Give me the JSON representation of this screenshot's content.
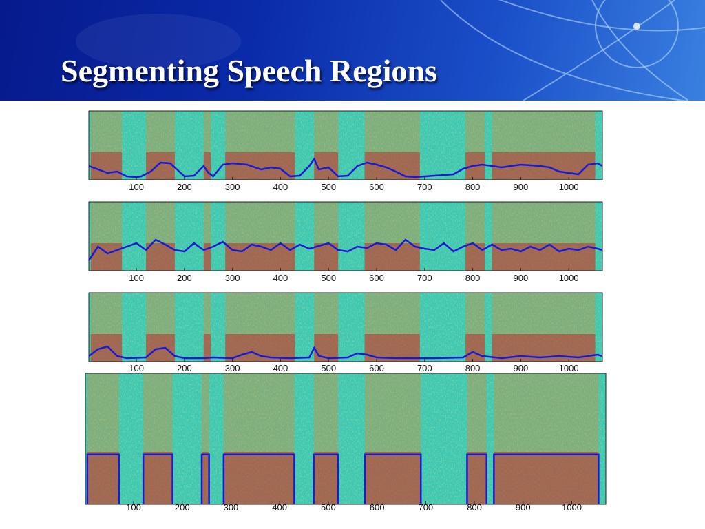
{
  "slide": {
    "title": "Segmenting Speech Regions"
  },
  "colors": {
    "spectrogram_bg": "#3ec8b4",
    "spectrogram_energy": "#f08020",
    "spectrogram_peak": "#c8141e",
    "trace": "#1a1ad6",
    "header_blue": "#0a2aa8"
  },
  "chart_data": [
    {
      "type": "line",
      "description_role": "spectrogram-with-energy-contour",
      "x_ticks": [
        "100",
        "200",
        "300",
        "400",
        "500",
        "600",
        "700",
        "800",
        "900",
        "1000"
      ],
      "xlim": [
        1,
        1070
      ],
      "speech_segments": [
        [
          5,
          70
        ],
        [
          120,
          180
        ],
        [
          240,
          255
        ],
        [
          285,
          430
        ],
        [
          470,
          520
        ],
        [
          575,
          690
        ],
        [
          785,
          825
        ],
        [
          840,
          1055
        ]
      ],
      "ylim": [
        0,
        1
      ],
      "series": [
        {
          "x": [
            1,
            40,
            60,
            80,
            100,
            110,
            130,
            150,
            170,
            180,
            200,
            220,
            240,
            250,
            260,
            280,
            300,
            330,
            360,
            380,
            400,
            420,
            440,
            460,
            470,
            480,
            500,
            520,
            540,
            560,
            580,
            600,
            620,
            640,
            660,
            680,
            700,
            720,
            760,
            780,
            800,
            820,
            840,
            860,
            880,
            900,
            940,
            960,
            980,
            1000,
            1020,
            1040,
            1060,
            1070
          ],
          "values": [
            0.2,
            0.1,
            0.12,
            0.05,
            0.04,
            0.05,
            0.12,
            0.25,
            0.24,
            0.18,
            0.05,
            0.06,
            0.2,
            0.1,
            0.05,
            0.22,
            0.24,
            0.22,
            0.15,
            0.18,
            0.16,
            0.05,
            0.06,
            0.2,
            0.3,
            0.15,
            0.18,
            0.05,
            0.06,
            0.2,
            0.25,
            0.22,
            0.18,
            0.12,
            0.05,
            0.04,
            0.05,
            0.06,
            0.08,
            0.16,
            0.2,
            0.22,
            0.2,
            0.18,
            0.2,
            0.22,
            0.2,
            0.18,
            0.12,
            0.1,
            0.08,
            0.22,
            0.24,
            0.2
          ]
        }
      ]
    },
    {
      "type": "line",
      "description_role": "spectrogram-with-noisy-feature",
      "x_ticks": [
        "100",
        "200",
        "300",
        "400",
        "500",
        "600",
        "700",
        "800",
        "900",
        "1000"
      ],
      "xlim": [
        1,
        1070
      ],
      "speech_segments": [
        [
          5,
          70
        ],
        [
          120,
          180
        ],
        [
          240,
          255
        ],
        [
          285,
          430
        ],
        [
          470,
          520
        ],
        [
          575,
          690
        ],
        [
          785,
          825
        ],
        [
          840,
          1055
        ]
      ],
      "ylim": [
        0,
        1
      ],
      "series": [
        {
          "x": [
            1,
            20,
            40,
            60,
            80,
            100,
            120,
            140,
            160,
            180,
            200,
            220,
            240,
            260,
            280,
            300,
            320,
            340,
            360,
            380,
            400,
            420,
            440,
            460,
            480,
            500,
            520,
            540,
            560,
            580,
            600,
            620,
            640,
            660,
            680,
            700,
            720,
            740,
            760,
            780,
            800,
            820,
            840,
            860,
            880,
            900,
            920,
            940,
            960,
            980,
            1000,
            1020,
            1040,
            1060,
            1070
          ],
          "values": [
            0.15,
            0.35,
            0.25,
            0.3,
            0.35,
            0.4,
            0.3,
            0.45,
            0.38,
            0.3,
            0.28,
            0.4,
            0.3,
            0.35,
            0.42,
            0.3,
            0.28,
            0.38,
            0.35,
            0.3,
            0.4,
            0.3,
            0.38,
            0.32,
            0.36,
            0.4,
            0.3,
            0.28,
            0.35,
            0.33,
            0.4,
            0.38,
            0.3,
            0.45,
            0.35,
            0.32,
            0.3,
            0.4,
            0.28,
            0.35,
            0.4,
            0.3,
            0.38,
            0.3,
            0.32,
            0.28,
            0.35,
            0.3,
            0.38,
            0.28,
            0.32,
            0.3,
            0.35,
            0.32,
            0.3
          ]
        }
      ]
    },
    {
      "type": "line",
      "description_role": "spectrogram-with-low-feature",
      "x_ticks": [
        "100",
        "200",
        "300",
        "400",
        "500",
        "600",
        "700",
        "800",
        "900",
        "1000"
      ],
      "xlim": [
        1,
        1070
      ],
      "speech_segments": [
        [
          5,
          70
        ],
        [
          120,
          180
        ],
        [
          240,
          255
        ],
        [
          285,
          430
        ],
        [
          470,
          520
        ],
        [
          575,
          690
        ],
        [
          785,
          825
        ],
        [
          840,
          1055
        ]
      ],
      "ylim": [
        0,
        1
      ],
      "series": [
        {
          "x": [
            1,
            20,
            40,
            60,
            80,
            120,
            140,
            160,
            180,
            200,
            240,
            260,
            300,
            320,
            340,
            360,
            380,
            420,
            460,
            470,
            480,
            500,
            540,
            560,
            580,
            600,
            640,
            680,
            720,
            780,
            800,
            820,
            860,
            900,
            940,
            980,
            1020,
            1060,
            1070
          ],
          "values": [
            0.08,
            0.18,
            0.22,
            0.08,
            0.05,
            0.06,
            0.18,
            0.2,
            0.08,
            0.05,
            0.05,
            0.06,
            0.05,
            0.1,
            0.14,
            0.08,
            0.06,
            0.05,
            0.06,
            0.2,
            0.08,
            0.05,
            0.06,
            0.12,
            0.1,
            0.06,
            0.05,
            0.05,
            0.05,
            0.06,
            0.14,
            0.08,
            0.05,
            0.08,
            0.06,
            0.08,
            0.06,
            0.1,
            0.08
          ]
        }
      ]
    },
    {
      "type": "line",
      "description_role": "spectrogram-with-segmentation-boxes",
      "x_ticks": [
        "100",
        "200",
        "300",
        "400",
        "500",
        "600",
        "700",
        "800",
        "900",
        "1000"
      ],
      "xlim": [
        1,
        1070
      ],
      "speech_segments": [
        [
          5,
          70
        ],
        [
          120,
          180
        ],
        [
          240,
          255
        ],
        [
          285,
          430
        ],
        [
          470,
          520
        ],
        [
          575,
          690
        ],
        [
          785,
          825
        ],
        [
          840,
          1055
        ]
      ],
      "segment_level": 0.38,
      "ylim": [
        0,
        1
      ],
      "series": []
    }
  ]
}
